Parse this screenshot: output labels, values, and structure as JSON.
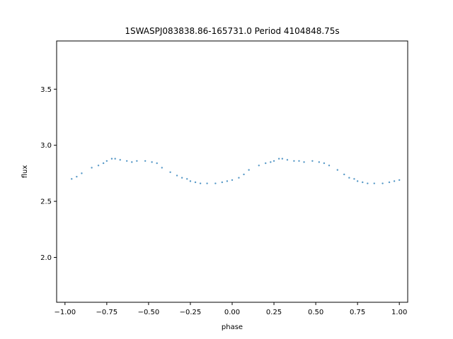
{
  "chart_data": {
    "type": "scatter",
    "title": "1SWASPJ083838.86-165731.0 Period 4104848.75s",
    "xlabel": "phase",
    "ylabel": "flux",
    "xlim": [
      -1.05,
      1.05
    ],
    "ylim": [
      1.6,
      3.93
    ],
    "xticks": [
      -1.0,
      -0.75,
      -0.5,
      -0.25,
      0.0,
      0.25,
      0.5,
      0.75,
      1.0
    ],
    "xtick_labels": [
      "−1.00",
      "−0.75",
      "−0.50",
      "−0.25",
      "0.00",
      "0.25",
      "0.50",
      "0.75",
      "1.00"
    ],
    "yticks": [
      2.0,
      2.5,
      3.0,
      3.5
    ],
    "ytick_labels": [
      "2.0",
      "2.5",
      "3.0",
      "3.5"
    ],
    "grid": false,
    "marker_color": "#1f77b4",
    "series": [
      {
        "x": [
          -0.96,
          -0.93,
          -0.9,
          -0.84,
          -0.8,
          -0.77,
          -0.75,
          -0.72,
          -0.7,
          -0.67,
          -0.63,
          -0.6,
          -0.57,
          -0.52,
          -0.48,
          -0.45,
          -0.42,
          -0.37,
          -0.33,
          -0.3,
          -0.27,
          -0.25,
          -0.22,
          -0.19,
          -0.15,
          -0.1,
          -0.06,
          -0.03,
          0.0,
          0.04,
          0.07,
          0.1,
          0.16,
          0.2,
          0.23,
          0.25,
          0.28,
          0.3,
          0.33,
          0.37,
          0.4,
          0.43,
          0.48,
          0.52,
          0.55,
          0.58,
          0.63,
          0.67,
          0.7,
          0.73,
          0.75,
          0.78,
          0.81,
          0.85,
          0.9,
          0.94,
          0.97,
          1.0
        ],
        "y": [
          2.7,
          2.72,
          2.75,
          2.8,
          2.82,
          2.84,
          2.86,
          2.88,
          2.88,
          2.87,
          2.86,
          2.85,
          2.86,
          2.86,
          2.85,
          2.84,
          2.8,
          2.76,
          2.73,
          2.71,
          2.7,
          2.68,
          2.67,
          2.66,
          2.66,
          2.66,
          2.67,
          2.68,
          2.69,
          2.71,
          2.74,
          2.78,
          2.82,
          2.84,
          2.85,
          2.86,
          2.88,
          2.88,
          2.87,
          2.86,
          2.86,
          2.85,
          2.86,
          2.85,
          2.84,
          2.82,
          2.78,
          2.74,
          2.71,
          2.7,
          2.68,
          2.67,
          2.66,
          2.66,
          2.66,
          2.67,
          2.68,
          2.69
        ]
      }
    ]
  }
}
